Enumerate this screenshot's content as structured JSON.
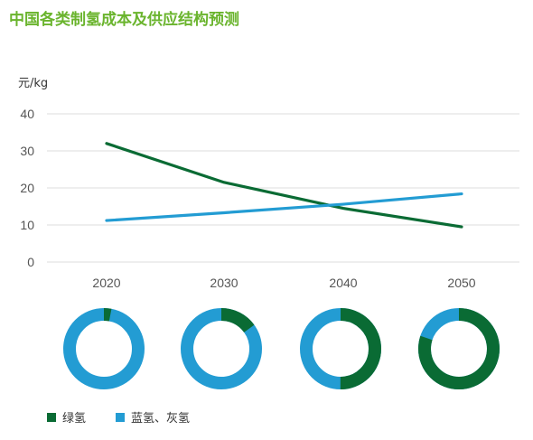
{
  "chart_data": {
    "type": "line",
    "title": "中国各类制氢成本及供应结构预测",
    "ylabel": "元/kg",
    "xlabel": "",
    "categories": [
      "2020",
      "2030",
      "2040",
      "2050"
    ],
    "ylim": [
      0,
      40
    ],
    "yticks": [
      "0",
      "10",
      "20",
      "30",
      "40"
    ],
    "grid": true,
    "series": [
      {
        "name": "绿氢",
        "color": "#0a6b34",
        "values": [
          32,
          21.5,
          14.5,
          9.5
        ]
      },
      {
        "name": "蓝氢、灰氢",
        "color": "#239cd3",
        "values": [
          11.2,
          13.3,
          15.6,
          18.4
        ]
      }
    ],
    "supply_structure": {
      "type": "donut",
      "green_share": [
        0.03,
        0.15,
        0.5,
        0.8
      ]
    }
  },
  "colors": {
    "title": "#6ab42d",
    "grid": "#dddddd",
    "green": "#0a6b34",
    "blue": "#239cd3"
  }
}
